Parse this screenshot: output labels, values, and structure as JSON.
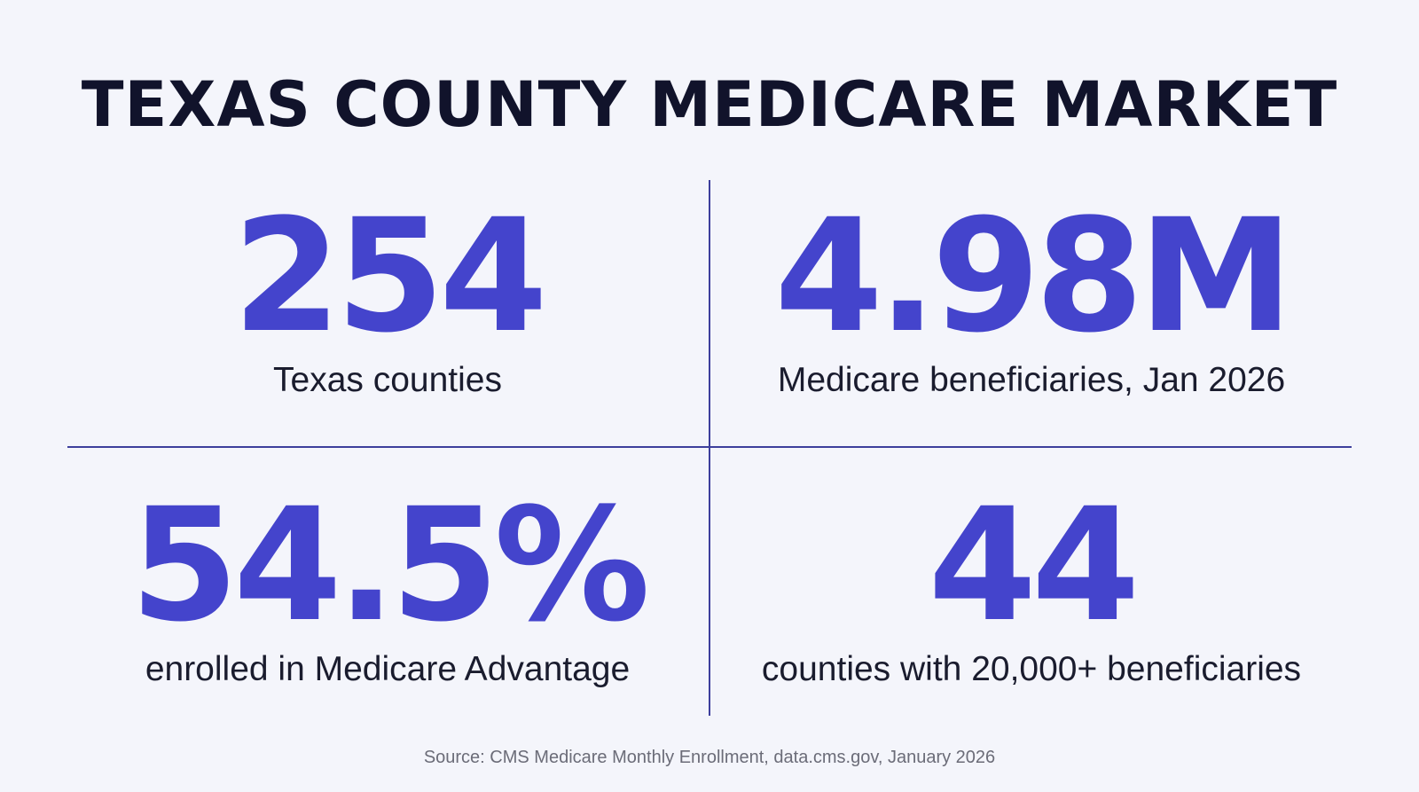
{
  "title": "TEXAS COUNTY MEDICARE MARKET",
  "stats": [
    {
      "value": "254",
      "label": "Texas counties"
    },
    {
      "value": "4.98M",
      "label": "Medicare beneficiaries, Jan 2026"
    },
    {
      "value": "54.5%",
      "label": "enrolled in Medicare Advantage"
    },
    {
      "value": "44",
      "label": "counties with 20,000+ beneficiaries"
    }
  ],
  "source": "Source: CMS Medicare Monthly Enrollment, data.cms.gov, January 2026",
  "colors": {
    "accent": "#4444cc",
    "title": "#11132b",
    "divider": "#3d3f9c",
    "background": "#f4f5fb"
  }
}
